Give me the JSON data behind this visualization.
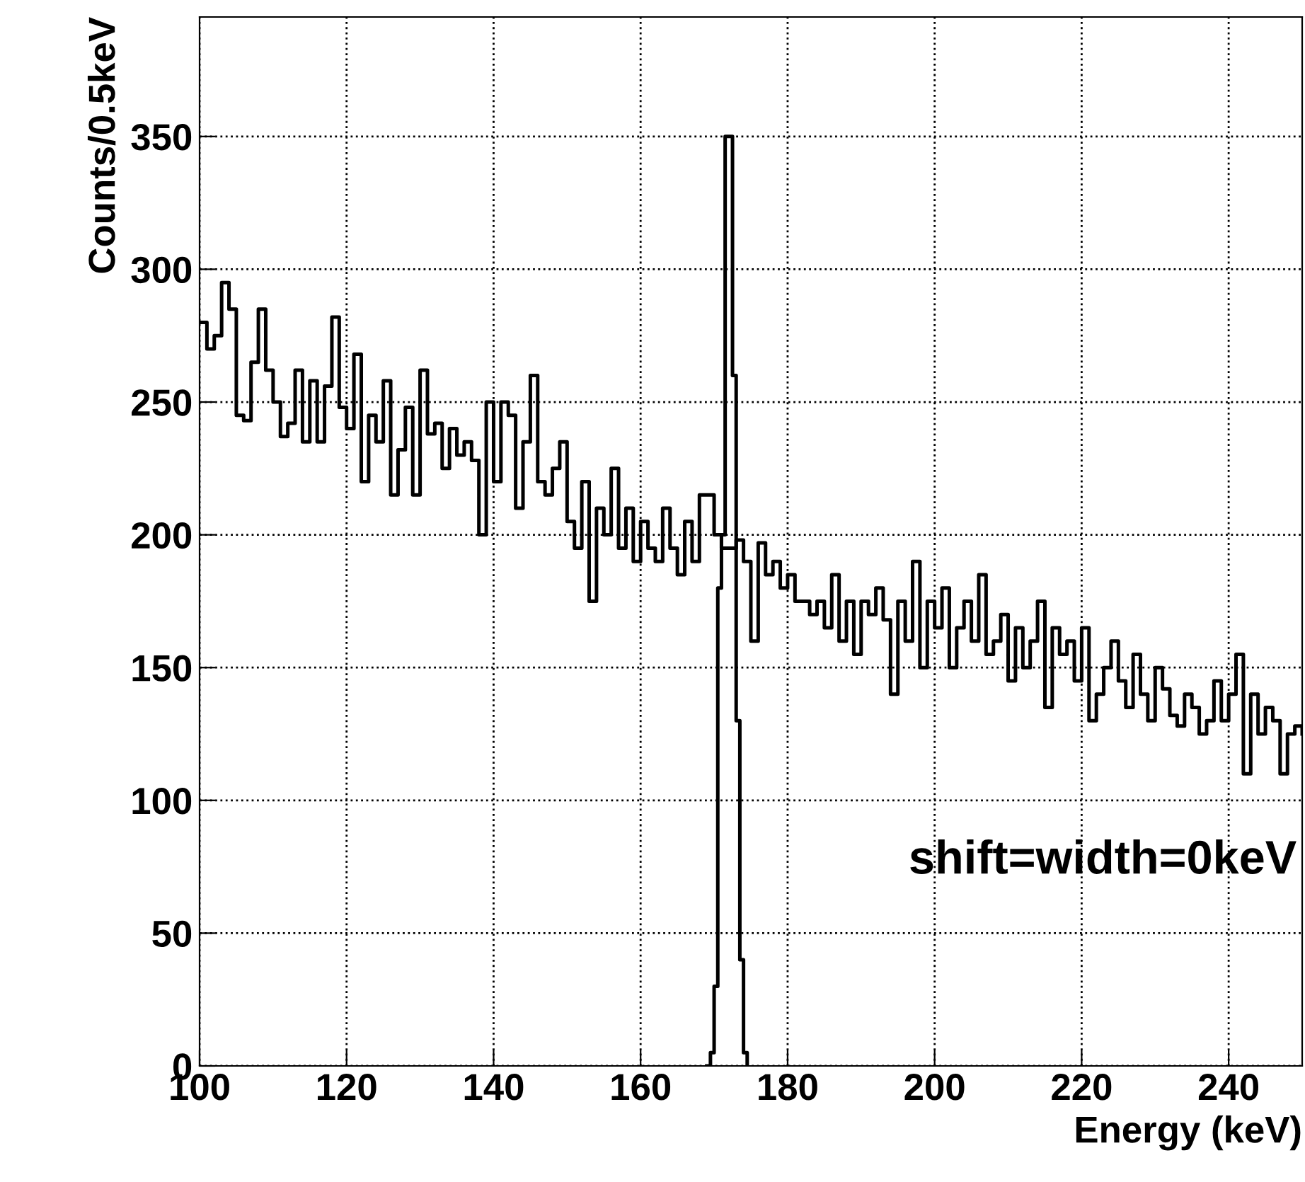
{
  "chart_data": {
    "type": "step",
    "xlabel": "Energy (keV)",
    "ylabel": "Counts/0.5keV",
    "annotations": [
      "shift=width=0keV"
    ],
    "xlim": [
      100,
      250
    ],
    "ylim": [
      0,
      395
    ],
    "xticks": [
      100,
      120,
      140,
      160,
      180,
      200,
      220,
      240
    ],
    "yticks": [
      0,
      50,
      100,
      150,
      200,
      250,
      300,
      350
    ],
    "grid": true,
    "legend": false,
    "series": [
      {
        "color": "#000000",
        "x": [
          100,
          101,
          102,
          103,
          104,
          105,
          106,
          107,
          108,
          109,
          110,
          111,
          112,
          113,
          114,
          115,
          116,
          117,
          118,
          119,
          120,
          121,
          122,
          123,
          124,
          125,
          126,
          127,
          128,
          129,
          130,
          131,
          132,
          133,
          134,
          135,
          136,
          137,
          138,
          139,
          140,
          141,
          142,
          143,
          144,
          145,
          146,
          147,
          148,
          149,
          150,
          151,
          152,
          153,
          154,
          155,
          156,
          157,
          158,
          159,
          160,
          161,
          162,
          163,
          164,
          165,
          166,
          167,
          168,
          169,
          170,
          171,
          172,
          173,
          174,
          175,
          176,
          177,
          178,
          179,
          180,
          181,
          182,
          183,
          184,
          185,
          186,
          187,
          188,
          189,
          190,
          191,
          192,
          193,
          194,
          195,
          196,
          197,
          198,
          199,
          200,
          201,
          202,
          203,
          204,
          205,
          206,
          207,
          208,
          209,
          210,
          211,
          212,
          213,
          214,
          215,
          216,
          217,
          218,
          219,
          220,
          221,
          222,
          223,
          224,
          225,
          226,
          227,
          228,
          229,
          230,
          231,
          232,
          233,
          234,
          235,
          236,
          237,
          238,
          239,
          240,
          241,
          242,
          243,
          244,
          245,
          246,
          247,
          248,
          249,
          250
        ],
        "values": [
          280,
          270,
          275,
          295,
          285,
          245,
          243,
          265,
          285,
          262,
          250,
          237,
          242,
          262,
          235,
          258,
          235,
          256,
          282,
          248,
          240,
          268,
          220,
          245,
          235,
          258,
          215,
          232,
          248,
          215,
          262,
          238,
          242,
          225,
          240,
          230,
          235,
          228,
          200,
          250,
          220,
          250,
          245,
          210,
          235,
          260,
          220,
          215,
          225,
          235,
          205,
          195,
          220,
          175,
          210,
          200,
          225,
          195,
          210,
          190,
          205,
          195,
          190,
          210,
          195,
          185,
          205,
          190,
          215,
          215,
          200,
          195,
          195,
          198,
          190,
          160,
          197,
          185,
          190,
          180,
          185,
          175,
          175,
          170,
          175,
          165,
          185,
          160,
          175,
          155,
          175,
          170,
          180,
          168,
          140,
          175,
          160,
          190,
          150,
          175,
          165,
          180,
          150,
          165,
          175,
          160,
          185,
          155,
          160,
          170,
          145,
          165,
          150,
          160,
          175,
          135,
          165,
          155,
          160,
          145,
          165,
          130,
          140,
          150,
          160,
          145,
          135,
          155,
          140,
          130,
          150,
          142,
          132,
          128,
          140,
          135,
          125,
          130,
          145,
          130,
          140,
          155,
          110,
          140,
          125,
          135,
          130,
          110,
          125,
          128,
          125
        ]
      },
      {
        "color": "#000000",
        "x": [
          169,
          169.5,
          170,
          170.5,
          171,
          171.5,
          172,
          172.5,
          173,
          173.5,
          174,
          174.5
        ],
        "values": [
          0,
          5,
          30,
          180,
          200,
          350,
          350,
          260,
          130,
          40,
          5,
          0
        ]
      }
    ]
  }
}
